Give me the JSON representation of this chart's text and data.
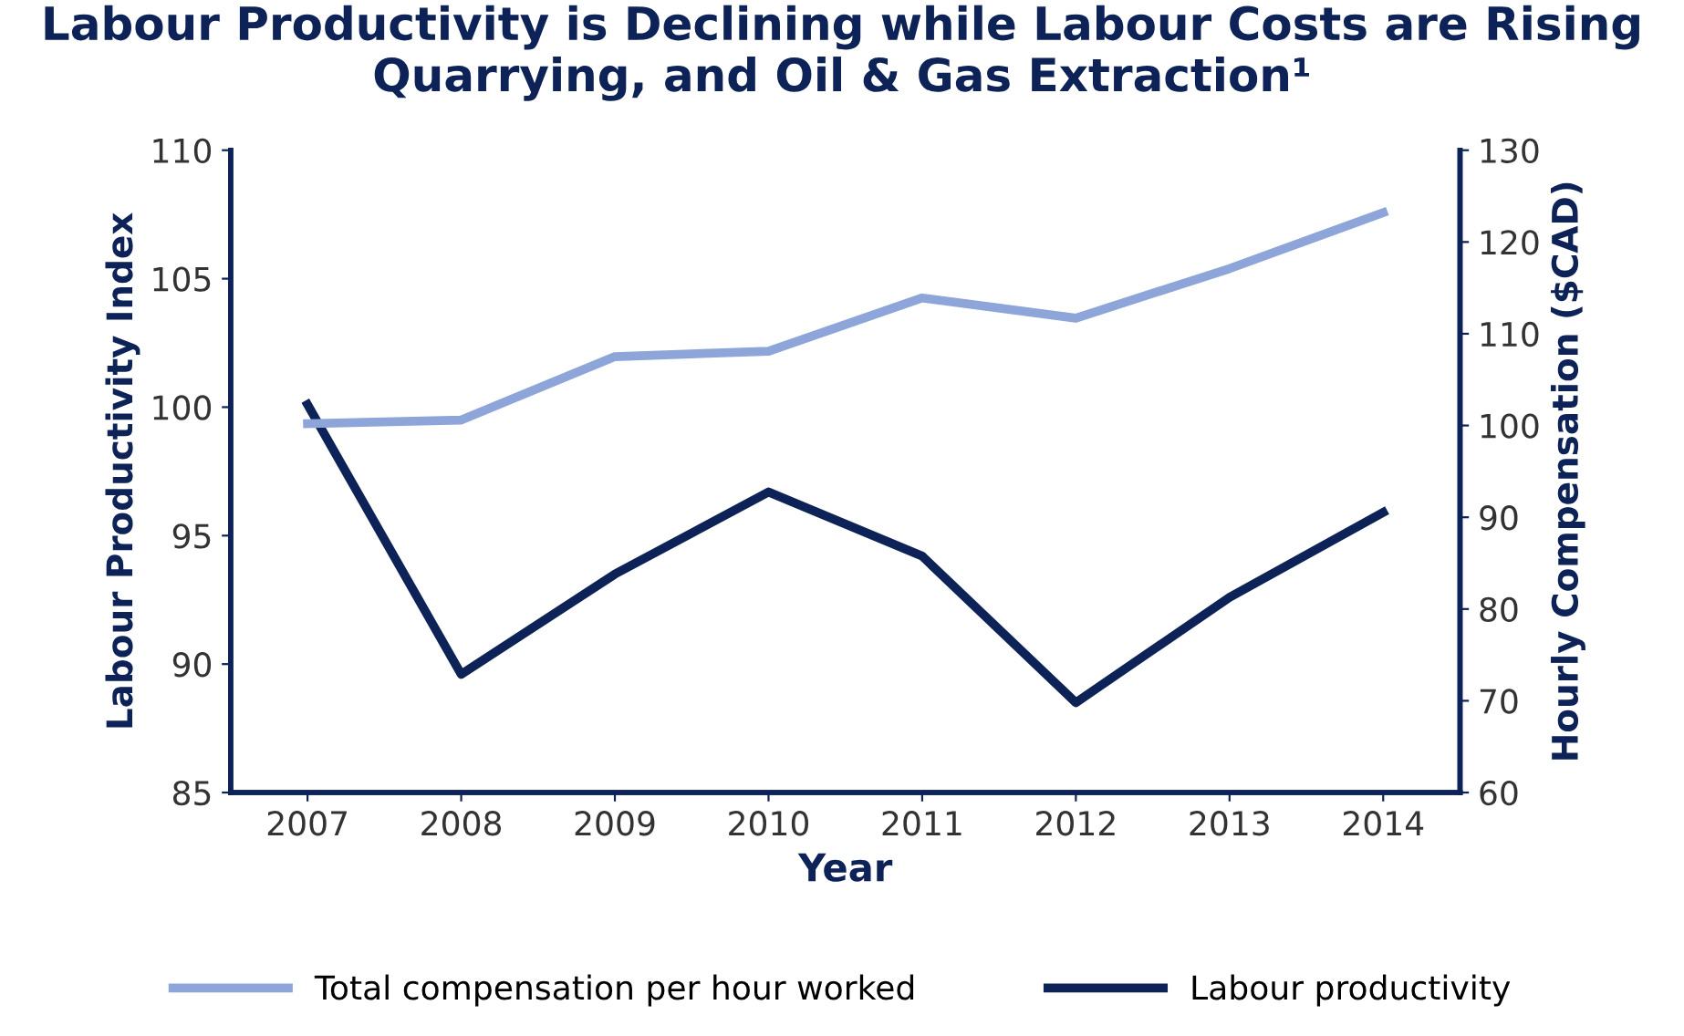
{
  "chart_data": {
    "type": "line",
    "title": "Labour Productivity is Declining while Labour Costs are Rising\nQuarrying, and Oil & Gas Extraction¹",
    "xlabel": "Year",
    "ylabel": "Labour Productivity Index",
    "y2label": "Hourly Compensation ($CAD)",
    "categories": [
      "2007",
      "2008",
      "2009",
      "2010",
      "2011",
      "2012",
      "2013",
      "2014"
    ],
    "series": [
      {
        "name": "Total compensation per hour worked",
        "color": "#8ea5d9",
        "axis": "y2",
        "values": [
          100.2,
          100.6,
          107.5,
          108.1,
          113.9,
          111.7,
          117.1,
          123.2
        ]
      },
      {
        "name": "Labour productivity",
        "color": "#0d2257",
        "axis": "y",
        "values": [
          100.1,
          89.6,
          93.5,
          96.7,
          94.2,
          88.5,
          92.6,
          95.9
        ]
      }
    ],
    "ylim": [
      85,
      110
    ],
    "yticks": [
      85,
      90,
      95,
      100,
      105,
      110
    ],
    "y2lim": [
      60,
      130
    ],
    "y2ticks": [
      60,
      70,
      80,
      90,
      100,
      110,
      120,
      130
    ],
    "grid": false,
    "legend": "bottom",
    "marker": "none",
    "line_style": "solid"
  }
}
